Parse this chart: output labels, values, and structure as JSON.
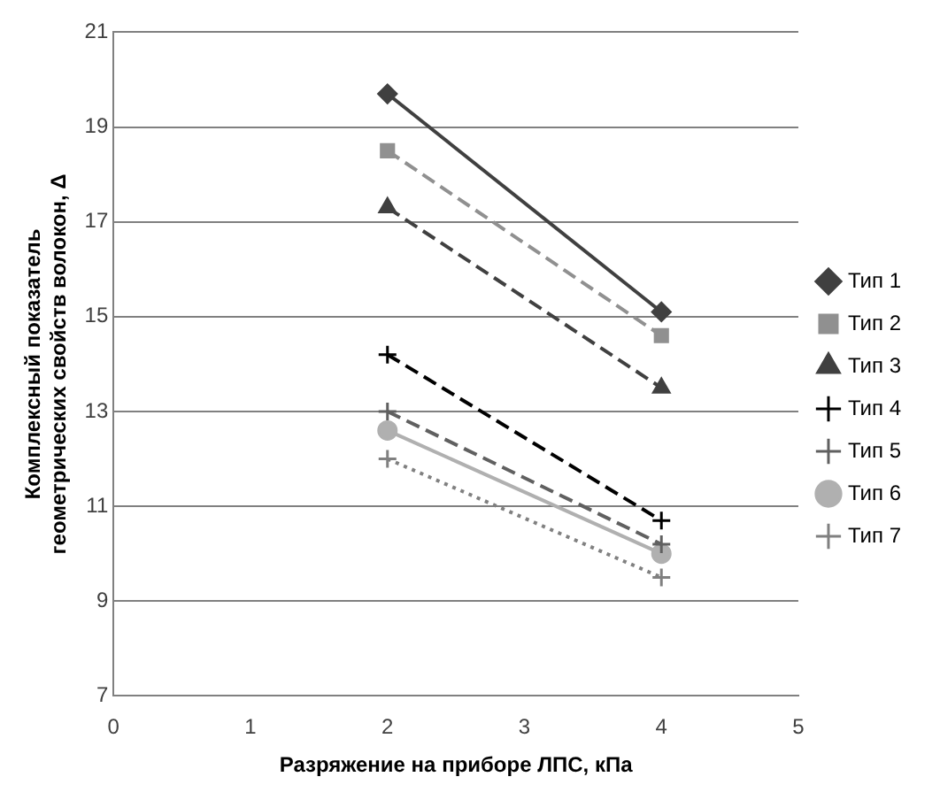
{
  "chart_data": {
    "type": "line",
    "xlabel": "Разряжение на приборе ЛПС, кПа",
    "ylabel": "Комплексный показатель геометрических свойств волокон, Δ",
    "x": [
      2,
      4
    ],
    "xlim": [
      0,
      5
    ],
    "xticks": [
      0,
      1,
      2,
      3,
      4,
      5
    ],
    "ylim": [
      7,
      21
    ],
    "yticks": [
      7,
      9,
      11,
      13,
      15,
      17,
      19,
      21
    ],
    "grid": "y",
    "legend": "right",
    "series": [
      {
        "name": "Тип 1",
        "color": "#404040",
        "values": [
          19.7,
          15.1
        ],
        "marker": "diamond",
        "line_style": "solid"
      },
      {
        "name": "Тип 2",
        "color": "#909090",
        "values": [
          18.5,
          14.6
        ],
        "marker": "square",
        "line_style": "dashed"
      },
      {
        "name": "Тип 3",
        "color": "#404040",
        "values": [
          17.3,
          13.5
        ],
        "marker": "triangle",
        "line_style": "dashed"
      },
      {
        "name": "Тип 4",
        "color": "#000000",
        "values": [
          14.2,
          10.7
        ],
        "marker": "cross",
        "line_style": "dashed"
      },
      {
        "name": "Тип 5",
        "color": "#606060",
        "values": [
          13.0,
          10.2
        ],
        "marker": "cross",
        "line_style": "dashed"
      },
      {
        "name": "Тип 6",
        "color": "#b0b0b0",
        "values": [
          12.6,
          10.0
        ],
        "marker": "circle",
        "line_style": "solid"
      },
      {
        "name": "Тип 7",
        "color": "#808080",
        "values": [
          12.0,
          9.5
        ],
        "marker": "cross",
        "line_style": "dotted"
      }
    ]
  }
}
